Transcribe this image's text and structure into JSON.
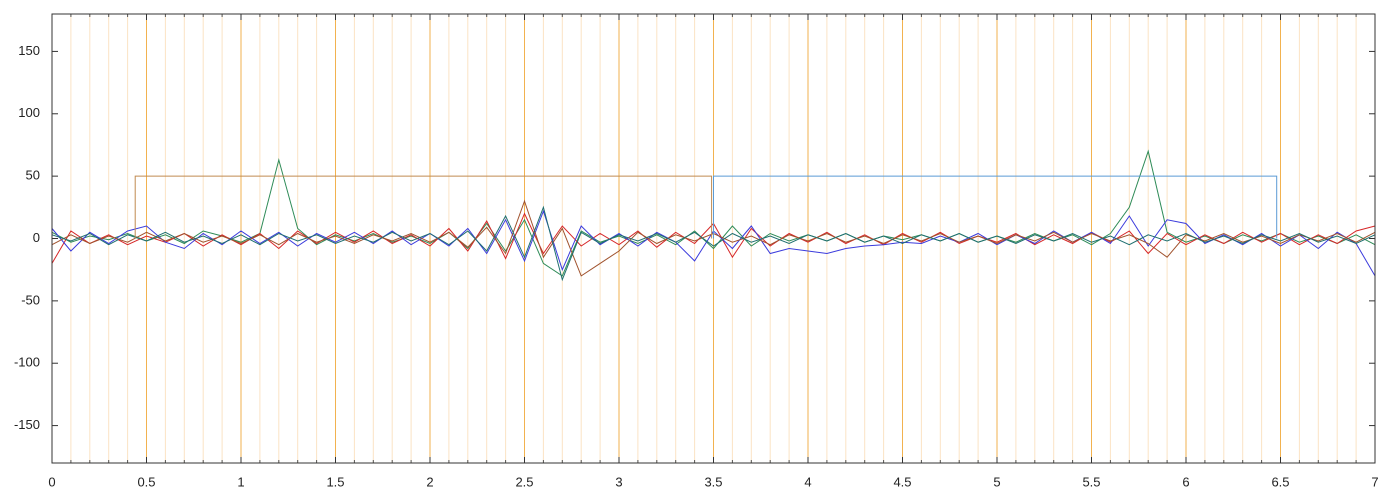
{
  "chart_data": {
    "type": "line",
    "x": [
      0,
      0.1,
      0.2,
      0.3,
      0.4,
      0.5,
      0.6,
      0.7,
      0.8,
      0.9,
      1,
      1.1,
      1.2,
      1.3,
      1.4,
      1.5,
      1.6,
      1.7,
      1.8,
      1.9,
      2,
      2.1,
      2.2,
      2.3,
      2.4,
      2.5,
      2.6,
      2.7,
      2.8,
      2.9,
      3,
      3.1,
      3.2,
      3.3,
      3.4,
      3.5,
      3.6,
      3.7,
      3.8,
      3.9,
      4,
      4.1,
      4.2,
      4.3,
      4.4,
      4.5,
      4.6,
      4.7,
      4.8,
      4.9,
      5,
      5.1,
      5.2,
      5.3,
      5.4,
      5.5,
      5.6,
      5.7,
      5.8,
      5.9,
      6,
      6.1,
      6.2,
      6.3,
      6.4,
      6.5,
      6.6,
      6.7,
      6.8,
      6.9,
      7
    ],
    "series": [
      {
        "color": "#2e8b57",
        "values": [
          5,
          -3,
          2,
          -1,
          4,
          -2,
          3,
          -4,
          6,
          2,
          -3,
          4,
          63,
          8,
          -5,
          3,
          -2,
          4,
          -3,
          2,
          -4,
          5,
          -8,
          12,
          -10,
          15,
          -20,
          -30,
          6,
          -3,
          2,
          -4,
          3,
          -5,
          6,
          -8,
          10,
          -6,
          4,
          -2,
          3,
          -2,
          4,
          -3,
          2,
          -1,
          3,
          -2,
          4,
          -3,
          2,
          -3,
          4,
          -2,
          3,
          -5,
          4,
          25,
          70,
          5,
          -3,
          2,
          -4,
          3,
          -2,
          4,
          -3,
          2,
          -4,
          3,
          -5
        ]
      },
      {
        "color": "#d62728",
        "values": [
          -20,
          6,
          -4,
          3,
          -5,
          2,
          -3,
          4,
          -6,
          3,
          -5,
          4,
          -8,
          6,
          -4,
          5,
          -3,
          6,
          -4,
          3,
          -6,
          8,
          -10,
          14,
          -16,
          20,
          -12,
          10,
          -6,
          4,
          -5,
          6,
          -7,
          5,
          -4,
          12,
          -15,
          8,
          -6,
          4,
          -3,
          5,
          -4,
          3,
          -5,
          4,
          -3,
          5,
          -4,
          2,
          -3,
          4,
          -5,
          3,
          -4,
          5,
          -3,
          6,
          -12,
          4,
          -5,
          3,
          -4,
          5,
          -3,
          4,
          -5,
          3,
          -4,
          6,
          10
        ]
      },
      {
        "color": "#3b3bdc",
        "values": [
          8,
          -10,
          5,
          -4,
          6,
          10,
          -3,
          -8,
          4,
          -5,
          6,
          -4,
          5,
          -6,
          4,
          -3,
          5,
          -4,
          6,
          -5,
          4,
          -6,
          8,
          -12,
          15,
          -18,
          22,
          -25,
          10,
          -5,
          4,
          -6,
          5,
          -3,
          -18,
          6,
          -8,
          10,
          -12,
          -8,
          -10,
          -12,
          -8,
          -6,
          -5,
          -3,
          -4,
          2,
          -3,
          4,
          -5,
          3,
          -4,
          6,
          -3,
          5,
          -4,
          18,
          -6,
          15,
          12,
          -4,
          3,
          -5,
          4,
          -6,
          3,
          -8,
          5,
          -4,
          -30
        ]
      },
      {
        "color": "#a0522d",
        "values": [
          -5,
          3,
          -4,
          2,
          -3,
          5,
          -2,
          4,
          -3,
          2,
          -4,
          3,
          -5,
          4,
          -3,
          2,
          -4,
          3,
          -2,
          4,
          -3,
          5,
          -7,
          9,
          -12,
          30,
          -15,
          8,
          -30,
          -20,
          -10,
          5,
          -4,
          3,
          -2,
          4,
          -3,
          2,
          -5,
          3,
          -2,
          4,
          -3,
          2,
          -4,
          3,
          -2,
          4,
          -3,
          2,
          -4,
          3,
          -2,
          5,
          -3,
          4,
          -2,
          3,
          -4,
          -15,
          3,
          -2,
          4,
          -3,
          2,
          -4,
          3,
          -2,
          4,
          -3,
          5
        ]
      },
      {
        "color": "#1f6f6f",
        "values": [
          3,
          -2,
          4,
          -5,
          3,
          -2,
          5,
          -3,
          2,
          -4,
          3,
          -5,
          4,
          -2,
          3,
          -4,
          2,
          -3,
          5,
          -2,
          4,
          -5,
          6,
          -10,
          18,
          -15,
          25,
          -33,
          5,
          -4,
          3,
          -2,
          4,
          -3,
          5,
          -6,
          4,
          -3,
          2,
          -4,
          3,
          -2,
          4,
          -3,
          2,
          -4,
          3,
          -2,
          4,
          -3,
          2,
          -4,
          3,
          -2,
          4,
          -3,
          2,
          -5,
          3,
          -2,
          4,
          -3,
          2,
          -4,
          3,
          -2,
          4,
          -3,
          2,
          -4,
          3
        ]
      },
      {
        "color": "#c08a50",
        "x": [
          0.44,
          0.44,
          3.49,
          3.49
        ],
        "values": [
          0,
          50,
          50,
          0
        ]
      },
      {
        "color": "#5b9bd5",
        "x": [
          3.5,
          3.5,
          6.48,
          6.48
        ],
        "values": [
          0,
          50,
          50,
          0
        ]
      }
    ],
    "xlim": [
      0,
      7
    ],
    "xticks": [
      0,
      0.5,
      1,
      1.5,
      2,
      2.5,
      3,
      3.5,
      4,
      4.5,
      5,
      5.5,
      6,
      6.5,
      7
    ],
    "ylim": [
      -180,
      180
    ],
    "yticks": [
      -150,
      -100,
      -50,
      0,
      50,
      100,
      150
    ],
    "grid": true,
    "xminor": 0.1,
    "grid_color": "#f2b24f",
    "minor_grid_color": "#fbe3c4"
  }
}
